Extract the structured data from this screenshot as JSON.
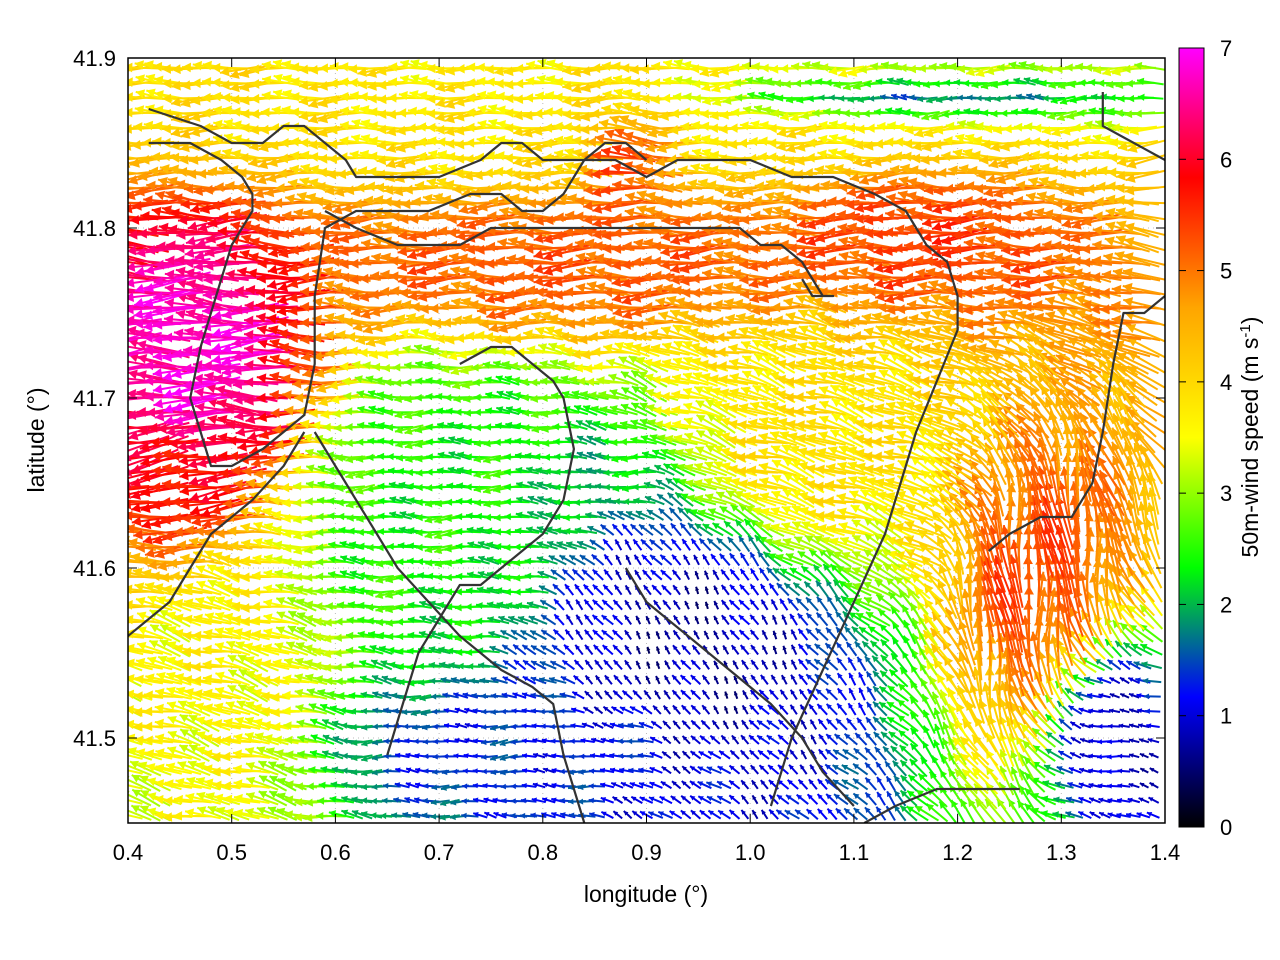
{
  "chart_data": {
    "type": "vector-field",
    "xlabel": "longitude (°)",
    "ylabel": "latitude (°)",
    "xlim": [
      0.4,
      1.4
    ],
    "ylim": [
      41.45,
      41.9
    ],
    "xticks": [
      "0.4",
      "0.5",
      "0.6",
      "0.7",
      "0.8",
      "0.9",
      "1.0",
      "1.1",
      "1.2",
      "1.3",
      "1.4"
    ],
    "yticks": [
      "41.5",
      "41.6",
      "41.7",
      "41.8",
      "41.9"
    ],
    "colorbar": {
      "label_main": "50m-wind speed (m s",
      "label_sup": "-1",
      "label_end": ")",
      "range": [
        0,
        7
      ],
      "ticks": [
        "0",
        "1",
        "2",
        "3",
        "4",
        "5",
        "6",
        "7"
      ],
      "colors": [
        "#000000",
        "#0000ff",
        "#00ff00",
        "#ffff00",
        "#ffa500",
        "#ff0000",
        "#ff00ff"
      ]
    },
    "grid": "dotted",
    "coastline_color": "#333333",
    "wind_regions": [
      {
        "lon": [
          0.4,
          0.58
        ],
        "lat": [
          41.65,
          41.8
        ],
        "speed": 6.8,
        "dir_deg": 180
      },
      {
        "lon": [
          0.4,
          0.52
        ],
        "lat": [
          41.62,
          41.7
        ],
        "speed": 5.8,
        "dir_deg": 190
      },
      {
        "lon": [
          0.85,
          0.95
        ],
        "lat": [
          41.82,
          41.88
        ],
        "speed": 6.5,
        "dir_deg": 160
      },
      {
        "lon": [
          0.58,
          1.1
        ],
        "lat": [
          41.74,
          41.82
        ],
        "speed": 5.2,
        "dir_deg": 180
      },
      {
        "lon": [
          1.05,
          1.3
        ],
        "lat": [
          41.76,
          41.84
        ],
        "speed": 5.4,
        "dir_deg": 180
      },
      {
        "lon": [
          0.4,
          1.4
        ],
        "lat": [
          41.82,
          41.9
        ],
        "speed": 3.8,
        "dir_deg": 180
      },
      {
        "lon": [
          0.58,
          0.85
        ],
        "lat": [
          41.55,
          41.72
        ],
        "speed": 2.4,
        "dir_deg": 180
      },
      {
        "lon": [
          0.8,
          0.95
        ],
        "lat": [
          41.62,
          41.68
        ],
        "speed": 2.0,
        "dir_deg": 180
      },
      {
        "lon": [
          0.8,
          1.1
        ],
        "lat": [
          41.48,
          41.66
        ],
        "speed": 0.7,
        "dir_deg": 120
      },
      {
        "lon": [
          0.9,
          1.4
        ],
        "lat": [
          41.86,
          41.89
        ],
        "speed": 1.4,
        "dir_deg": 180
      },
      {
        "lon": [
          1.2,
          1.35
        ],
        "lat": [
          41.52,
          41.66
        ],
        "speed": 5.3,
        "dir_deg": 95
      },
      {
        "lon": [
          1.3,
          1.4
        ],
        "lat": [
          41.46,
          41.55
        ],
        "speed": 0.8,
        "dir_deg": 170
      },
      {
        "lon": [
          0.9,
          1.2
        ],
        "lat": [
          41.58,
          41.74
        ],
        "speed": 3.9,
        "dir_deg": 165
      },
      {
        "lon": [
          0.4,
          0.6
        ],
        "lat": [
          41.45,
          41.6
        ],
        "speed": 3.6,
        "dir_deg": 165
      },
      {
        "lon": [
          0.6,
          0.95
        ],
        "lat": [
          41.46,
          41.53
        ],
        "speed": 1.3,
        "dir_deg": 180
      }
    ],
    "coastlines": [
      [
        [
          0.42,
          41.87
        ],
        [
          0.47,
          41.86
        ],
        [
          0.5,
          41.85
        ],
        [
          0.53,
          41.85
        ],
        [
          0.55,
          41.86
        ],
        [
          0.57,
          41.86
        ],
        [
          0.59,
          41.85
        ],
        [
          0.61,
          41.84
        ],
        [
          0.62,
          41.83
        ],
        [
          0.66,
          41.83
        ],
        [
          0.7,
          41.83
        ],
        [
          0.74,
          41.84
        ],
        [
          0.76,
          41.85
        ],
        [
          0.78,
          41.85
        ],
        [
          0.8,
          41.84
        ],
        [
          0.82,
          41.84
        ],
        [
          0.84,
          41.84
        ],
        [
          0.87,
          41.84
        ],
        [
          0.9,
          41.83
        ],
        [
          0.93,
          41.84
        ],
        [
          0.96,
          41.84
        ],
        [
          1.0,
          41.84
        ],
        [
          1.04,
          41.83
        ],
        [
          1.08,
          41.83
        ],
        [
          1.12,
          41.82
        ],
        [
          1.15,
          41.81
        ],
        [
          1.17,
          41.79
        ],
        [
          1.19,
          41.78
        ],
        [
          1.2,
          41.76
        ],
        [
          1.2,
          41.74
        ],
        [
          1.18,
          41.71
        ],
        [
          1.16,
          41.68
        ],
        [
          1.15,
          41.66
        ],
        [
          1.13,
          41.62
        ],
        [
          1.1,
          41.58
        ],
        [
          1.07,
          41.54
        ],
        [
          1.04,
          41.5
        ],
        [
          1.02,
          41.46
        ]
      ],
      [
        [
          0.42,
          41.85
        ],
        [
          0.46,
          41.85
        ],
        [
          0.49,
          41.84
        ],
        [
          0.51,
          41.83
        ],
        [
          0.52,
          41.82
        ],
        [
          0.52,
          41.81
        ],
        [
          0.5,
          41.79
        ],
        [
          0.49,
          41.77
        ],
        [
          0.47,
          41.73
        ],
        [
          0.46,
          41.7
        ],
        [
          0.47,
          41.68
        ],
        [
          0.48,
          41.66
        ],
        [
          0.5,
          41.66
        ],
        [
          0.53,
          41.67
        ],
        [
          0.55,
          41.68
        ],
        [
          0.57,
          41.69
        ],
        [
          0.58,
          41.72
        ],
        [
          0.58,
          41.76
        ],
        [
          0.59,
          41.8
        ],
        [
          0.62,
          41.81
        ],
        [
          0.65,
          41.81
        ],
        [
          0.69,
          41.81
        ],
        [
          0.73,
          41.82
        ],
        [
          0.76,
          41.82
        ],
        [
          0.78,
          41.81
        ],
        [
          0.8,
          41.81
        ],
        [
          0.82,
          41.82
        ],
        [
          0.84,
          41.84
        ]
      ],
      [
        [
          0.57,
          41.68
        ],
        [
          0.55,
          41.66
        ],
        [
          0.52,
          41.64
        ],
        [
          0.48,
          41.62
        ],
        [
          0.46,
          41.6
        ],
        [
          0.44,
          41.58
        ],
        [
          0.42,
          41.57
        ],
        [
          0.4,
          41.56
        ]
      ],
      [
        [
          0.59,
          41.81
        ],
        [
          0.62,
          41.8
        ],
        [
          0.66,
          41.79
        ],
        [
          0.69,
          41.79
        ],
        [
          0.72,
          41.79
        ],
        [
          0.75,
          41.8
        ],
        [
          0.77,
          41.8
        ],
        [
          0.79,
          41.8
        ],
        [
          0.81,
          41.8
        ],
        [
          0.83,
          41.8
        ],
        [
          0.87,
          41.8
        ],
        [
          0.91,
          41.8
        ],
        [
          0.95,
          41.8
        ],
        [
          0.97,
          41.8
        ]
      ],
      [
        [
          0.84,
          41.84
        ],
        [
          0.86,
          41.85
        ],
        [
          0.88,
          41.85
        ],
        [
          0.9,
          41.84
        ]
      ],
      [
        [
          0.58,
          41.68
        ],
        [
          0.6,
          41.66
        ],
        [
          0.62,
          41.64
        ],
        [
          0.64,
          41.62
        ],
        [
          0.66,
          41.6
        ],
        [
          0.69,
          41.58
        ],
        [
          0.72,
          41.56
        ],
        [
          0.74,
          41.55
        ],
        [
          0.76,
          41.54
        ],
        [
          0.79,
          41.53
        ],
        [
          0.81,
          41.52
        ],
        [
          0.82,
          41.49
        ],
        [
          0.83,
          41.47
        ],
        [
          0.84,
          41.45
        ]
      ],
      [
        [
          0.72,
          41.72
        ],
        [
          0.75,
          41.73
        ],
        [
          0.77,
          41.73
        ],
        [
          0.79,
          41.72
        ],
        [
          0.81,
          41.71
        ],
        [
          0.82,
          41.7
        ],
        [
          0.83,
          41.67
        ],
        [
          0.82,
          41.64
        ],
        [
          0.8,
          41.62
        ],
        [
          0.78,
          41.61
        ],
        [
          0.76,
          41.6
        ],
        [
          0.74,
          41.59
        ],
        [
          0.72,
          41.59
        ],
        [
          0.7,
          41.57
        ],
        [
          0.68,
          41.55
        ],
        [
          0.67,
          41.53
        ],
        [
          0.66,
          41.51
        ],
        [
          0.65,
          41.49
        ]
      ],
      [
        [
          0.88,
          41.6
        ],
        [
          0.9,
          41.58
        ],
        [
          0.92,
          41.57
        ],
        [
          0.94,
          41.56
        ],
        [
          0.96,
          41.55
        ],
        [
          0.98,
          41.54
        ],
        [
          1.0,
          41.53
        ],
        [
          1.02,
          41.52
        ],
        [
          1.05,
          41.5
        ],
        [
          1.07,
          41.48
        ],
        [
          1.1,
          41.46
        ]
      ],
      [
        [
          1.26,
          41.47
        ],
        [
          1.22,
          41.47
        ],
        [
          1.18,
          41.47
        ],
        [
          1.14,
          41.46
        ],
        [
          1.11,
          41.45
        ]
      ],
      [
        [
          1.23,
          41.61
        ],
        [
          1.25,
          41.62
        ],
        [
          1.28,
          41.63
        ],
        [
          1.31,
          41.63
        ],
        [
          1.33,
          41.65
        ],
        [
          1.34,
          41.68
        ],
        [
          1.35,
          41.72
        ],
        [
          1.36,
          41.75
        ],
        [
          1.38,
          41.75
        ],
        [
          1.4,
          41.76
        ]
      ],
      [
        [
          0.96,
          41.8
        ],
        [
          0.99,
          41.8
        ],
        [
          1.01,
          41.79
        ],
        [
          1.03,
          41.79
        ],
        [
          1.05,
          41.78
        ],
        [
          1.06,
          41.77
        ],
        [
          1.07,
          41.76
        ],
        [
          1.08,
          41.76
        ],
        [
          1.06,
          41.76
        ],
        [
          1.05,
          41.77
        ]
      ],
      [
        [
          1.34,
          41.88
        ],
        [
          1.34,
          41.86
        ],
        [
          1.37,
          41.85
        ],
        [
          1.4,
          41.84
        ]
      ]
    ]
  }
}
